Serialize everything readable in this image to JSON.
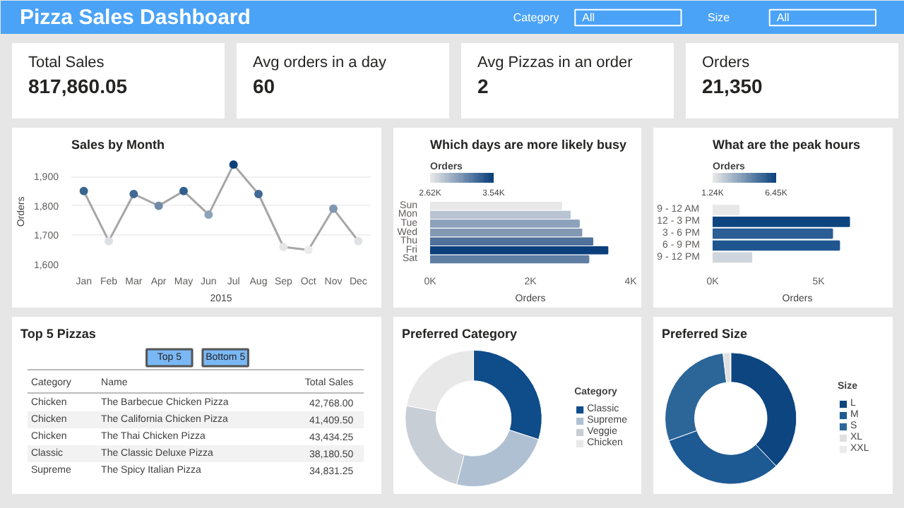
{
  "chart_data": [
    {
      "type": "other",
      "title": "Pizza Sales Dashboard",
      "annotations": [
        "Category",
        "All",
        "Size",
        "All"
      ]
    },
    {
      "type": "other",
      "title": "Total Sales",
      "annotations": [
        "817,860.05"
      ]
    },
    {
      "type": "other",
      "title": "Avg orders in a day",
      "annotations": [
        "60"
      ]
    },
    {
      "type": "other",
      "title": "Avg Pizzas in an order",
      "annotations": [
        "2"
      ]
    },
    {
      "type": "other",
      "title": "Orders",
      "annotations": [
        "21,350"
      ]
    },
    {
      "type": "line",
      "title": "Sales by Month",
      "xlabel": "2015",
      "ylabel": "Orders",
      "categories": [
        "Jan",
        "Feb",
        "Mar",
        "Apr",
        "May",
        "Jun",
        "Jul",
        "Aug",
        "Sep",
        "Oct",
        "Nov",
        "Dec"
      ],
      "series": [
        {
          "color": "#a6a6a6",
          "colors": [
            "#3a6591",
            "#dcdfe3",
            "#416b95",
            "#6f8aa8",
            "#335f8e",
            "#8ea3ba",
            "#0d3f7a",
            "#416b95",
            "#e6e6e6",
            "#ebebeb",
            "#7f97b1",
            "#e0e2e5"
          ],
          "values": [
            1850,
            1680,
            1840,
            1800,
            1850,
            1770,
            1940,
            1840,
            1660,
            1650,
            1790,
            1680
          ]
        }
      ],
      "ylim": [
        1600,
        1960
      ],
      "yticks": [
        {
          "value": 1600,
          "label": "1,600"
        },
        {
          "value": 1700,
          "label": "1,700"
        },
        {
          "value": 1800,
          "label": "1,800"
        },
        {
          "value": 1900,
          "label": "1,900"
        }
      ],
      "grid": "y",
      "marker": "circle",
      "line_style": "solid"
    },
    {
      "type": "bar",
      "orientation": "horizontal",
      "title": "Which days are more likely busy",
      "xlabel": "Orders",
      "clabel": "Orders",
      "categories": [
        "Sun",
        "Mon",
        "Tue",
        "Wed",
        "Thu",
        "Fri",
        "Sat"
      ],
      "values": [
        2.62,
        2.79,
        2.97,
        3.02,
        3.24,
        3.54,
        3.16
      ],
      "colors": [
        "#e8e8e8",
        "#b8c4d2",
        "#8ca1ba",
        "#8298b3",
        "#4f719a",
        "#0b3f7c",
        "#5f7ea3"
      ],
      "xlim": [
        0,
        4
      ],
      "xticks": [
        {
          "value": 0,
          "label": "0K"
        },
        {
          "value": 2,
          "label": "2K"
        },
        {
          "value": 4,
          "label": "4K"
        }
      ],
      "clim": [
        2.62,
        3.54
      ],
      "cticks": [
        {
          "value": 2.62,
          "label": "2.62K"
        },
        {
          "value": 3.54,
          "label": "3.54K"
        }
      ]
    },
    {
      "type": "bar",
      "orientation": "horizontal",
      "title": "What are the peak hours",
      "xlabel": "Orders",
      "clabel": "Orders",
      "categories": [
        "9 - 12 AM",
        "12 - 3 PM",
        "3 - 6 PM",
        "6 - 9 PM",
        "9 - 12 PM"
      ],
      "values": [
        1.24,
        6.45,
        5.65,
        5.98,
        1.84
      ],
      "colors": [
        "#e8e8e8",
        "#0d4580",
        "#2a5e94",
        "#1f5690",
        "#cfd5dc"
      ],
      "xlim": [
        0,
        8
      ],
      "xticks": [
        {
          "value": 0,
          "label": "0K"
        },
        {
          "value": 5,
          "label": "5K"
        }
      ],
      "clim": [
        1.24,
        6.45
      ],
      "cticks": [
        {
          "value": 1.24,
          "label": "1.24K"
        },
        {
          "value": 6.45,
          "label": "6.45K"
        }
      ]
    },
    {
      "type": "other",
      "title": "Top 5 Pizzas",
      "annotations": [
        "Top 5",
        "Bottom 5"
      ],
      "categories": [
        "Category",
        "Name",
        "Total Sales"
      ],
      "cell_labels": [
        [
          "Chicken",
          "The Barbecue Chicken Pizza",
          "42,768.00"
        ],
        [
          "Chicken",
          "The California Chicken Pizza",
          "41,409.50"
        ],
        [
          "Chicken",
          "The Thai Chicken Pizza",
          "43,434.25"
        ],
        [
          "Classic",
          "The Classic Deluxe Pizza",
          "38,180.50"
        ],
        [
          "Supreme",
          "The Spicy Italian Pizza",
          "34,831.25"
        ]
      ]
    },
    {
      "type": "donut",
      "title": "Preferred Category",
      "legend_title": "Category",
      "legend": "right",
      "categories": [
        "Classic",
        "Supreme",
        "Veggie",
        "Chicken"
      ],
      "values": [
        30,
        24,
        24,
        22
      ],
      "colors": [
        "#0f4c8a",
        "#b0c0d3",
        "#c8ced6",
        "#e8e8e8"
      ]
    },
    {
      "type": "donut",
      "title": "Preferred Size",
      "legend_title": "Size",
      "legend": "right",
      "categories": [
        "L",
        "M",
        "S",
        "XL",
        "XXL"
      ],
      "values": [
        37.9,
        31.6,
        28.6,
        1.8,
        0.1
      ],
      "colors": [
        "#0d4580",
        "#1d5a94",
        "#2c6699",
        "#e0e0e0",
        "#ececec"
      ]
    }
  ]
}
